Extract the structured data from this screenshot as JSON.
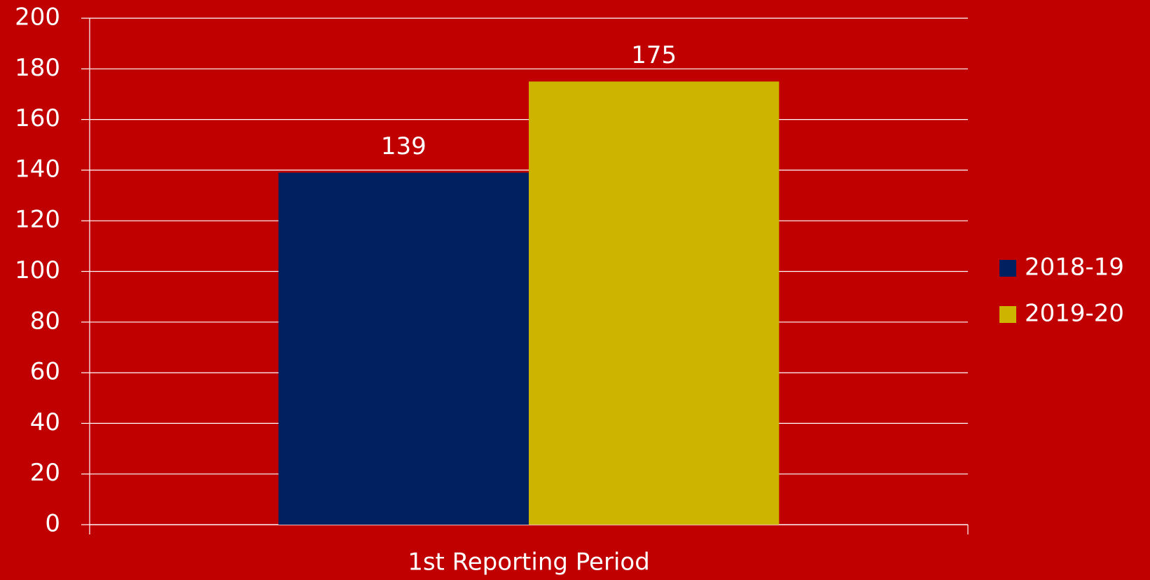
{
  "chart_data": {
    "type": "bar",
    "categories": [
      "1st Reporting Period"
    ],
    "series": [
      {
        "name": "2018-19",
        "color": "#002060",
        "values": [
          139
        ]
      },
      {
        "name": "2019-20",
        "color": "#ccb400",
        "values": [
          175
        ]
      }
    ],
    "ylim": [
      0,
      200
    ],
    "yticks": [
      0,
      20,
      40,
      60,
      80,
      100,
      120,
      140,
      160,
      180,
      200
    ],
    "grid": true,
    "legend": "right"
  }
}
